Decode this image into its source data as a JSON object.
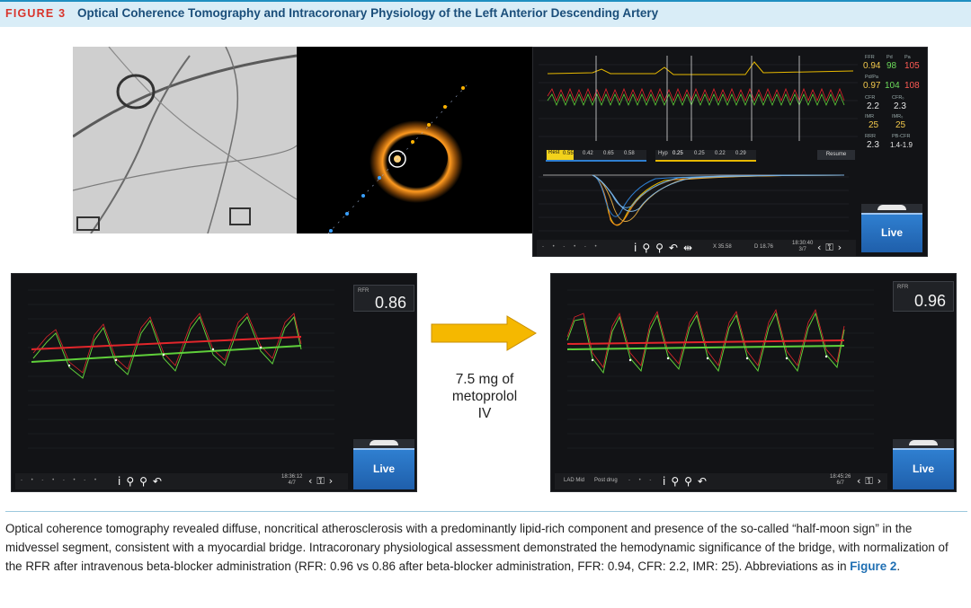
{
  "figure": {
    "number": "FIGURE 3",
    "title": "Optical Coherence Tomography and Intracoronary Physiology of the Left Anterior Descending Artery"
  },
  "top_monitor": {
    "readouts": {
      "ffr_label": "FFR",
      "pa_label": "Pa",
      "pd_label": "Pd",
      "ffr": "0.94",
      "pd_val": "98",
      "pa_val": "105",
      "pdpa_label": "Pd/Pa",
      "pdpa": "0.97",
      "pd2": "104",
      "pa2": "108",
      "cfr_label": "CFR",
      "cfr_ctl_label": "CFR₀",
      "cfr": "2.2",
      "cfr2": "2.3",
      "imr_label": "IMR",
      "imr_ctl_label": "IMR₀",
      "imr": "25",
      "imr2": "25",
      "rrr_label": "RRR",
      "pbcfr_label": "PB-CFR",
      "rrr": "2.3",
      "pbcfr": "1.4-1.9"
    },
    "rest_tab": {
      "label": "Rest",
      "values": [
        "0.55",
        "0.42",
        "0.65",
        "0.58"
      ]
    },
    "hyp_tab": {
      "label": "Hyp",
      "values": [
        "0.25",
        "0.25",
        "0.22",
        "0.29"
      ]
    },
    "resume": "Resume",
    "live": "Live",
    "toolbar": {
      "x": "X 35.58",
      "d": "D 18.76",
      "time": "18:30:40",
      "page": "3/7"
    }
  },
  "left_monitor": {
    "label": "RFR",
    "value": "0.86",
    "live": "Live",
    "toolbar": {
      "time": "18:36:12",
      "page": "4/7"
    }
  },
  "right_monitor": {
    "label": "RFR",
    "value": "0.96",
    "live": "Live",
    "toolbar": {
      "left1": "LAD Mid",
      "left2": "Post drug",
      "time": "18:45:26",
      "page": "6/7"
    }
  },
  "intervention": {
    "line1": "7.5 mg of",
    "line2": "metoprolol",
    "line3": "IV"
  },
  "colors": {
    "arrow": "#f5b800",
    "pressure_red": "#e2262b",
    "pressure_green": "#5fcf3a",
    "trace_yellow": "#e6b800",
    "live_blue": "#2f7fd0"
  },
  "caption": {
    "text": "Optical coherence tomography revealed diffuse, noncritical atherosclerosis with a predominantly lipid-rich component and presence of the so-called “half-moon sign” in the midvessel segment, consistent with a myocardial bridge. Intracoronary physiological assessment demonstrated the hemodynamic significance of the bridge, with normalization of the RFR after intravenous beta-blocker administration (RFR: 0.96 vs 0.86 after beta-blocker administration, FFR: 0.94, CFR: 2.2, IMR: 25). Abbreviations as in ",
    "link": "Figure 2",
    "end": "."
  }
}
